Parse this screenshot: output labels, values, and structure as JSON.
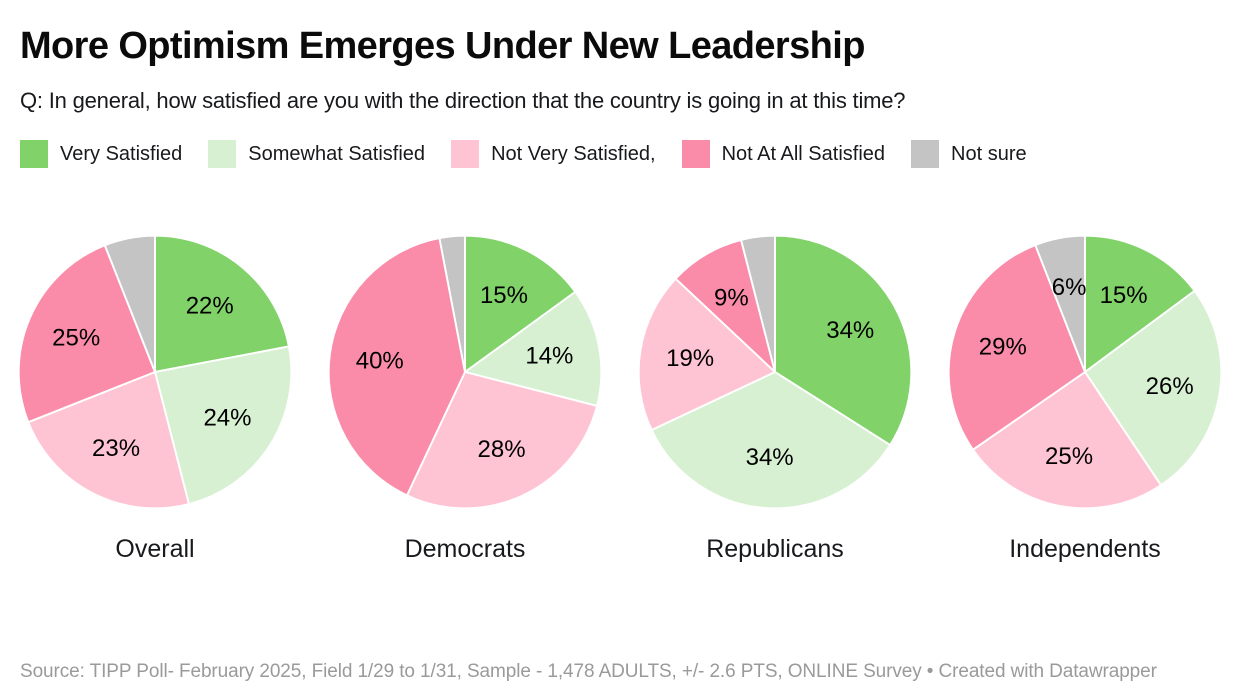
{
  "header": {
    "title": "More Optimism Emerges Under New Leadership",
    "subtitle": "Q: In general, how satisfied are you with the direction that the country is going in at this time?"
  },
  "legend": {
    "items": [
      {
        "label": "Very Satisfied",
        "color": "#80d269"
      },
      {
        "label": "Somewhat Satisfied",
        "color": "#d7f0d2"
      },
      {
        "label": "Not Very Satisfied,",
        "color": "#ffc4d3"
      },
      {
        "label": "Not At All Satisfied",
        "color": "#fa8caa"
      },
      {
        "label": "Not sure",
        "color": "#c4c4c4"
      }
    ]
  },
  "chart_data": {
    "type": "pie",
    "title": "More Optimism Emerges Under New Leadership",
    "categories": [
      "Very Satisfied",
      "Somewhat Satisfied",
      "Not Very Satisfied",
      "Not At All Satisfied",
      "Not sure"
    ],
    "colors": [
      "#80d269",
      "#d7f0d2",
      "#ffc4d3",
      "#fa8caa",
      "#c4c4c4"
    ],
    "start_angle_deg": 0,
    "direction": "clockwise",
    "label_radius_fraction": 0.63,
    "pies": [
      {
        "title": "Overall",
        "values": [
          22,
          24,
          23,
          25,
          6
        ],
        "labels": [
          "22%",
          "24%",
          "23%",
          "25%",
          ""
        ]
      },
      {
        "title": "Democrats",
        "values": [
          15,
          14,
          28,
          40,
          3
        ],
        "labels": [
          "15%",
          "14%",
          "28%",
          "40%",
          ""
        ]
      },
      {
        "title": "Republicans",
        "values": [
          34,
          34,
          19,
          9,
          4
        ],
        "labels": [
          "34%",
          "34%",
          "19%",
          "9%",
          ""
        ]
      },
      {
        "title": "Independents",
        "values": [
          15,
          26,
          25,
          29,
          6
        ],
        "labels": [
          "15%",
          "26%",
          "25%",
          "29%",
          "6%"
        ]
      }
    ]
  },
  "footer": {
    "source": "Source: TIPP Poll- February 2025, Field 1/29 to 1/31, Sample - 1,478 ADULTS, +/- 2.6 PTS, ONLINE Survey • Created with Datawrapper"
  }
}
